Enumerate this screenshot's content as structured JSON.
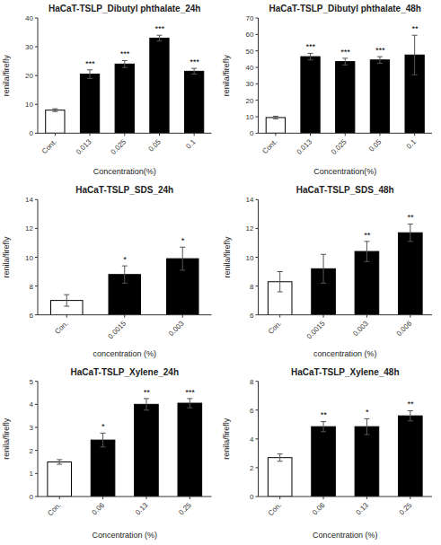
{
  "chart_data": [
    {
      "type": "bar",
      "title": "HaCaT-TSLP_Dibutyl phthalate_24h",
      "categories": [
        "Cont.",
        "0.013",
        "0.025",
        "0.05",
        "0.1"
      ],
      "values": [
        8.0,
        20.5,
        24.0,
        33.0,
        21.5
      ],
      "errors": [
        0.5,
        1.5,
        1.2,
        1.0,
        1.0
      ],
      "colors": [
        "white",
        "black",
        "black",
        "black",
        "black"
      ],
      "annotations": [
        {
          "category": "0.013",
          "text": "***"
        },
        {
          "category": "0.025",
          "text": "***"
        },
        {
          "category": "0.05",
          "text": "***"
        },
        {
          "category": "0.1",
          "text": "***"
        }
      ],
      "ylabel": "renila/firefly",
      "xlabel": "Concentration(%)",
      "ylim": [
        0,
        40
      ],
      "yticks": [
        0,
        10,
        20,
        30,
        40
      ],
      "grid": false
    },
    {
      "type": "bar",
      "title": "HaCaT-TSLP_Dibutyl phthalate_48h",
      "categories": [
        "Cont.",
        "0.013",
        "0.025",
        "0.05",
        "0.1"
      ],
      "values": [
        9.5,
        46.5,
        43.5,
        44.5,
        47.5
      ],
      "errors": [
        0.8,
        2.0,
        2.0,
        2.0,
        12.0
      ],
      "colors": [
        "white",
        "black",
        "black",
        "black",
        "black"
      ],
      "annotations": [
        {
          "category": "0.013",
          "text": "***"
        },
        {
          "category": "0.025",
          "text": "***"
        },
        {
          "category": "0.05",
          "text": "***"
        },
        {
          "category": "0.1",
          "text": "**"
        }
      ],
      "ylabel": "renila/firefly",
      "xlabel": "Concentration(%)",
      "ylim": [
        0,
        70
      ],
      "yticks": [
        0,
        10,
        20,
        30,
        40,
        50,
        60,
        70
      ],
      "grid": false
    },
    {
      "type": "bar",
      "title": "HaCaT-TSLP_SDS_24h",
      "categories": [
        "Con.",
        "0.0015",
        "0.003"
      ],
      "values": [
        7.0,
        8.8,
        9.9
      ],
      "errors": [
        0.4,
        0.6,
        0.8
      ],
      "colors": [
        "white",
        "black",
        "black"
      ],
      "annotations": [
        {
          "category": "0.0015",
          "text": "*"
        },
        {
          "category": "0.003",
          "text": "*"
        }
      ],
      "ylabel": "renila/firefly",
      "xlabel": "concentration (%)",
      "ylim": [
        6,
        14
      ],
      "yticks": [
        6,
        8,
        10,
        12,
        14
      ],
      "grid": false
    },
    {
      "type": "bar",
      "title": "HaCaT-TSLP_SDS_48h",
      "categories": [
        "Con.",
        "0.0015",
        "0.003",
        "0.006"
      ],
      "values": [
        8.3,
        9.2,
        10.4,
        11.7
      ],
      "errors": [
        0.7,
        1.0,
        0.7,
        0.6
      ],
      "colors": [
        "white",
        "black",
        "black",
        "black"
      ],
      "annotations": [
        {
          "category": "0.003",
          "text": "**"
        },
        {
          "category": "0.006",
          "text": "**"
        }
      ],
      "ylabel": "renila/firefly",
      "xlabel": "concentration (%)",
      "ylim": [
        6,
        14
      ],
      "yticks": [
        6,
        8,
        10,
        12,
        14
      ],
      "grid": false
    },
    {
      "type": "bar",
      "title": "HaCaT-TSLP_Xylene_24h",
      "categories": [
        "Con.",
        "0.06",
        "0.13",
        "0.25"
      ],
      "values": [
        1.5,
        2.45,
        4.0,
        4.05
      ],
      "errors": [
        0.1,
        0.3,
        0.25,
        0.2
      ],
      "colors": [
        "white",
        "black",
        "black",
        "black"
      ],
      "annotations": [
        {
          "category": "0.06",
          "text": "*"
        },
        {
          "category": "0.13",
          "text": "**"
        },
        {
          "category": "0.25",
          "text": "***"
        }
      ],
      "ylabel": "renila/firefly",
      "xlabel": "Concentration (%)",
      "ylim": [
        0,
        5
      ],
      "yticks": [
        0,
        1,
        2,
        3,
        4,
        5
      ],
      "grid": false
    },
    {
      "type": "bar",
      "title": "HaCaT-TSLP_Xylene_48h",
      "categories": [
        "Con.",
        "0.06",
        "0.13",
        "0.25"
      ],
      "values": [
        2.7,
        4.85,
        4.85,
        5.6
      ],
      "errors": [
        0.25,
        0.35,
        0.55,
        0.35
      ],
      "colors": [
        "white",
        "black",
        "black",
        "black"
      ],
      "annotations": [
        {
          "category": "0.06",
          "text": "**"
        },
        {
          "category": "0.13",
          "text": "*"
        },
        {
          "category": "0.25",
          "text": "**"
        }
      ],
      "ylabel": "renila/firefly",
      "xlabel": "Concentration (%)",
      "ylim": [
        0,
        8
      ],
      "yticks": [
        0,
        2,
        4,
        6,
        8
      ],
      "grid": false
    }
  ]
}
